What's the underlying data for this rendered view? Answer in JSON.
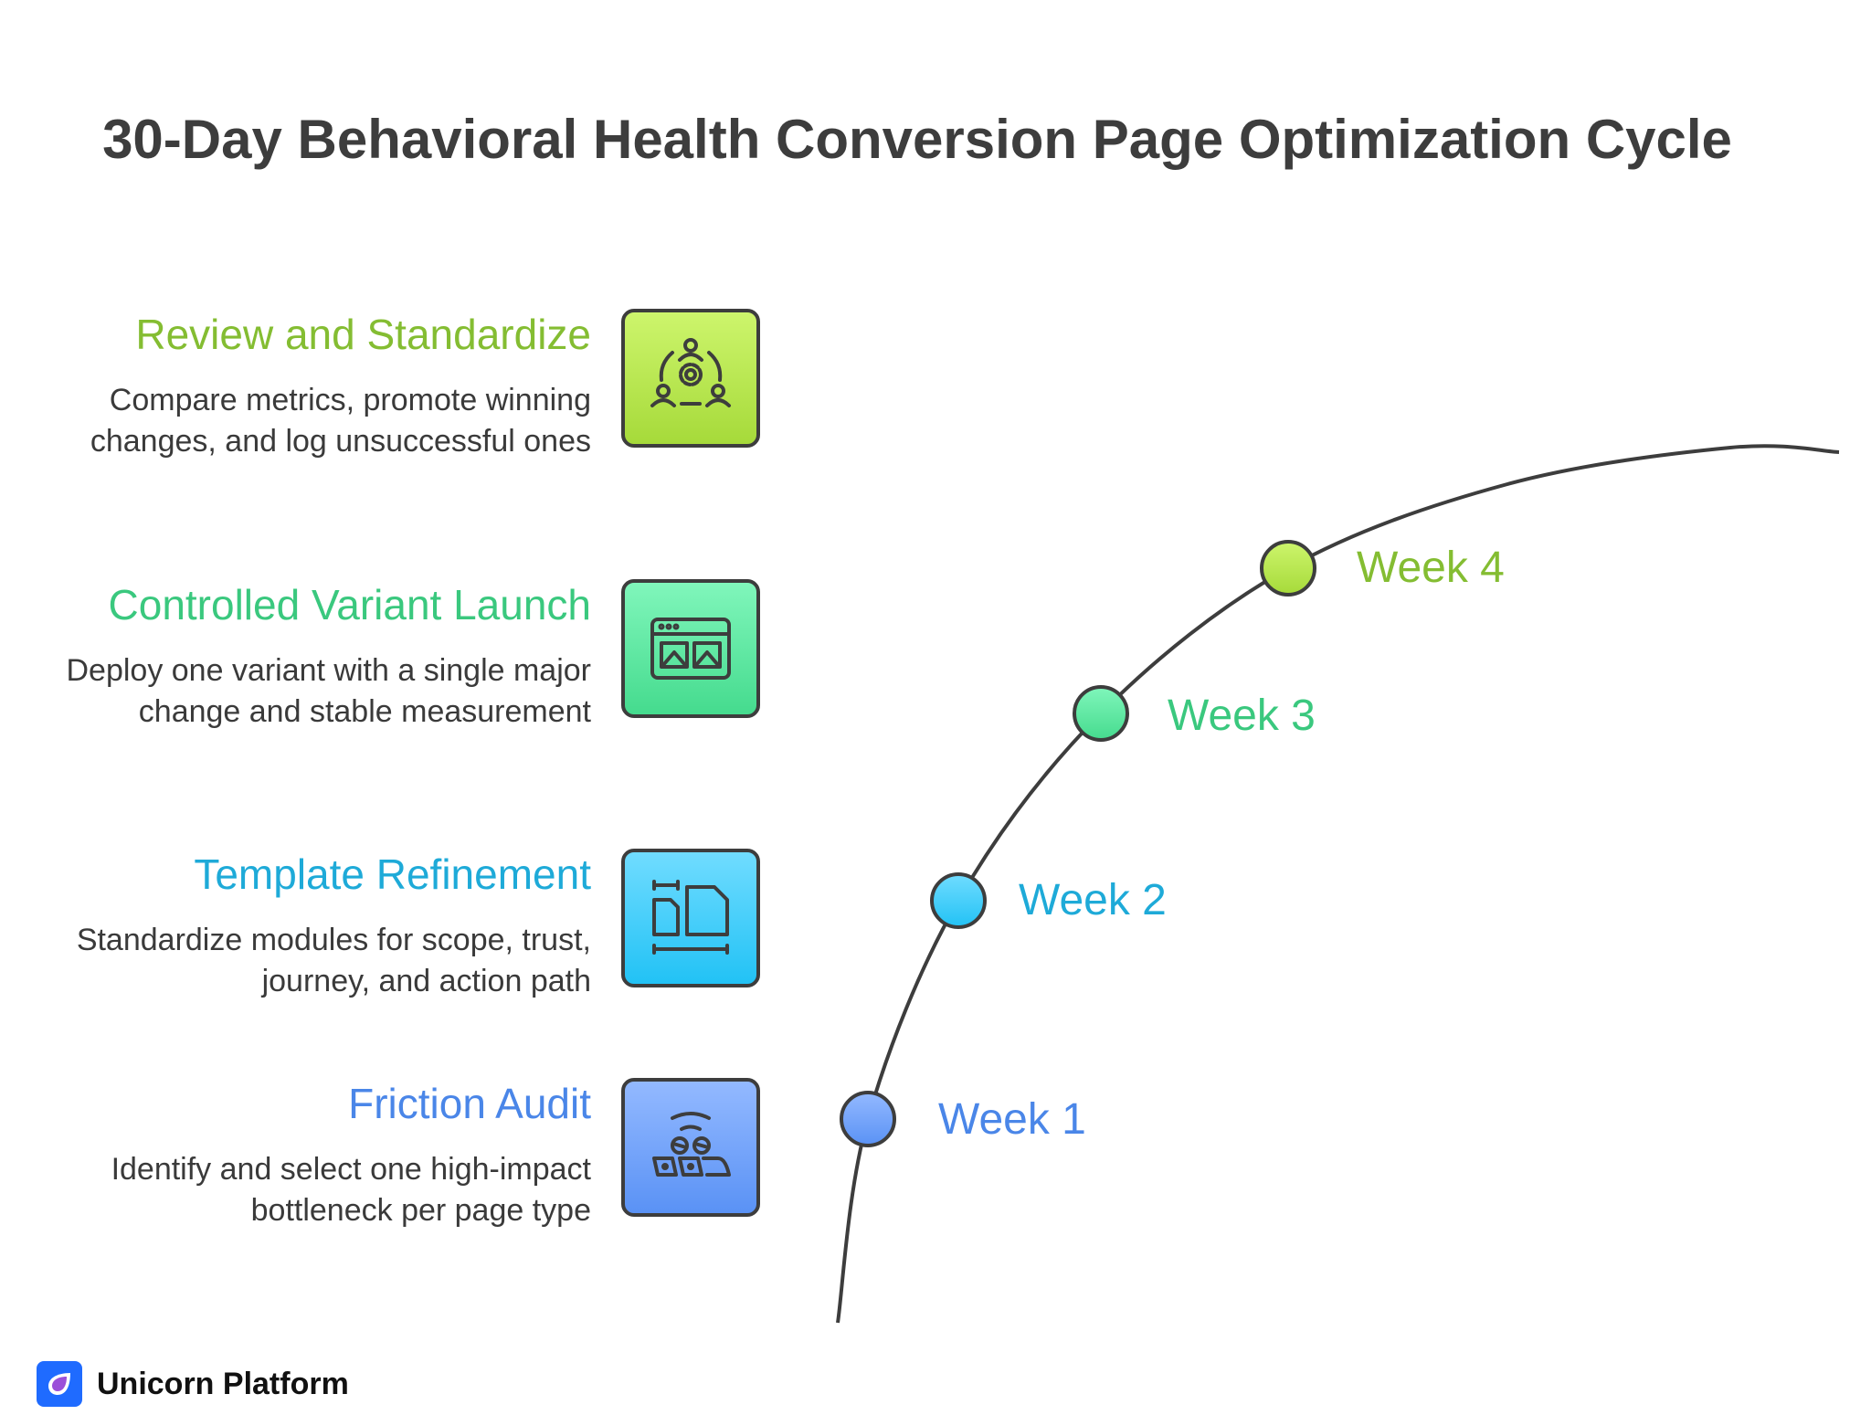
{
  "title": "30-Day Behavioral Health Conversion Page Optimization Cycle",
  "steps": [
    {
      "heading": "Review and Standardize",
      "description": "Compare metrics, promote winning changes, and log unsuccessful ones",
      "color": "#84bd32",
      "icon": "team-gear-icon",
      "week": "Week 4"
    },
    {
      "heading": "Controlled Variant Launch",
      "description": "Deploy one variant with a single major change and stable measurement",
      "color": "#3ac87e",
      "icon": "browser-variants-icon",
      "week": "Week 3"
    },
    {
      "heading": "Template Refinement",
      "description": "Standardize modules for scope, trust, journey, and action path",
      "color": "#1eaad8",
      "icon": "layout-modules-icon",
      "week": "Week 2"
    },
    {
      "heading": "Friction Audit",
      "description": "Identify and select one high-impact bottleneck per page type",
      "color": "#4a86e8",
      "icon": "audit-signal-icon",
      "week": "Week 1"
    }
  ],
  "brand": {
    "name": "Unicorn Platform",
    "color": "#1f6bff"
  }
}
